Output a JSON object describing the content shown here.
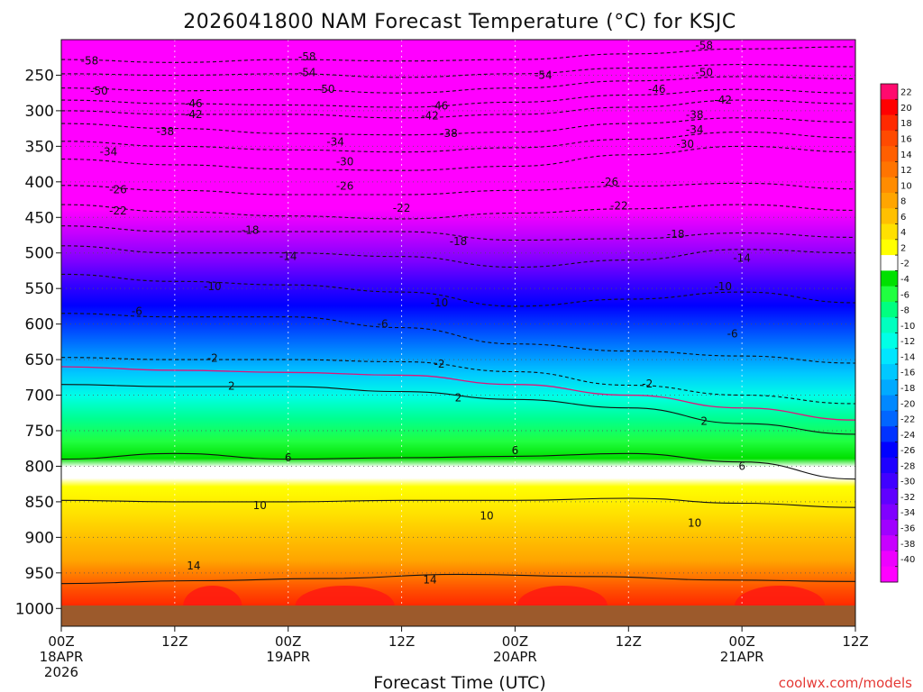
{
  "chart_data": {
    "type": "heatmap",
    "title": "2026041800 NAM Forecast Temperature (°C) for KSJC",
    "xlabel": "Forecast Time (UTC)",
    "ylabel": "",
    "credit": "coolwx.com/models",
    "y_ticks": [
      "250",
      "300",
      "350",
      "400",
      "450",
      "500",
      "550",
      "600",
      "650",
      "700",
      "750",
      "800",
      "850",
      "900",
      "950",
      "1000"
    ],
    "y_values": [
      250,
      300,
      350,
      400,
      450,
      500,
      550,
      600,
      650,
      700,
      750,
      800,
      850,
      900,
      950,
      1000
    ],
    "y_range_hPa": [
      200,
      1025
    ],
    "x_range_hours": [
      0,
      84
    ],
    "x_ticks": [
      {
        "hour": 0,
        "lines": [
          "00Z",
          "18APR",
          "2026"
        ]
      },
      {
        "hour": 12,
        "lines": [
          "12Z"
        ]
      },
      {
        "hour": 24,
        "lines": [
          "00Z",
          "19APR"
        ]
      },
      {
        "hour": 36,
        "lines": [
          "12Z"
        ]
      },
      {
        "hour": 48,
        "lines": [
          "00Z",
          "20APR"
        ]
      },
      {
        "hour": 60,
        "lines": [
          "12Z"
        ]
      },
      {
        "hour": 72,
        "lines": [
          "00Z",
          "21APR"
        ]
      },
      {
        "hour": 84,
        "lines": [
          "12Z"
        ]
      }
    ],
    "colorbar_labels": [
      "22",
      "20",
      "18",
      "16",
      "14",
      "12",
      "10",
      "8",
      "6",
      "4",
      "2",
      "-2",
      "-4",
      "-6",
      "-8",
      "-10",
      "-12",
      "-14",
      "-16",
      "-18",
      "-20",
      "-22",
      "-24",
      "-26",
      "-28",
      "-30",
      "-32",
      "-34",
      "-36",
      "-38",
      "-40"
    ],
    "colorbar_colors": [
      "#ff0a6e",
      "#ff0000",
      "#ff2a00",
      "#ff4a00",
      "#ff5f00",
      "#ff7400",
      "#ff8c00",
      "#ffa500",
      "#ffc000",
      "#ffe000",
      "#ffff00",
      "#ffffff",
      "#00e000",
      "#20ff40",
      "#00ff80",
      "#00ffbf",
      "#00ffe6",
      "#00e6ff",
      "#00c8ff",
      "#00aaff",
      "#0088ff",
      "#0066ff",
      "#0033ff",
      "#0000ff",
      "#1e00ff",
      "#4000ff",
      "#6000ff",
      "#8000ff",
      "#a000ff",
      "#c800ff",
      "#ee00ff",
      "#ff00ff"
    ],
    "isotherms": [
      {
        "temp": 14,
        "hPa": [
          965,
          961,
          958,
          952,
          955,
          960,
          962
        ]
      },
      {
        "temp": 10,
        "hPa": [
          848,
          850,
          850,
          848,
          848,
          845,
          852,
          858
        ]
      },
      {
        "temp": 6,
        "hPa": [
          790,
          782,
          790,
          788,
          786,
          782,
          794,
          818
        ]
      },
      {
        "temp": 2,
        "hPa": [
          685,
          688,
          688,
          695,
          706,
          718,
          740,
          755
        ]
      },
      {
        "temp": -2,
        "hPa": [
          647,
          650,
          650,
          653,
          667,
          686,
          700,
          712
        ]
      },
      {
        "temp": -6,
        "hPa": [
          585,
          590,
          590,
          605,
          628,
          638,
          645,
          655
        ]
      },
      {
        "temp": -10,
        "hPa": [
          530,
          540,
          545,
          555,
          575,
          565,
          555,
          570
        ]
      },
      {
        "temp": -14,
        "hPa": [
          490,
          500,
          500,
          505,
          520,
          510,
          495,
          500
        ]
      },
      {
        "temp": -18,
        "hPa": [
          462,
          470,
          470,
          470,
          482,
          480,
          472,
          478
        ]
      },
      {
        "temp": -22,
        "hPa": [
          432,
          442,
          448,
          452,
          444,
          438,
          432,
          440
        ]
      },
      {
        "temp": -26,
        "hPa": [
          405,
          412,
          418,
          418,
          412,
          406,
          402,
          410
        ]
      },
      {
        "temp": -30,
        "hPa": [
          368,
          376,
          382,
          384,
          378,
          362,
          350,
          358
        ]
      },
      {
        "temp": -34,
        "hPa": [
          343,
          350,
          355,
          358,
          352,
          340,
          330,
          338
        ]
      },
      {
        "temp": -38,
        "hPa": [
          318,
          325,
          332,
          334,
          330,
          318,
          310,
          316
        ]
      },
      {
        "temp": -42,
        "hPa": [
          300,
          305,
          305,
          310,
          305,
          295,
          285,
          290
        ]
      },
      {
        "temp": -46,
        "hPa": [
          285,
          290,
          292,
          295,
          288,
          278,
          270,
          275
        ]
      },
      {
        "temp": -50,
        "hPa": [
          268,
          272,
          270,
          275,
          268,
          258,
          252,
          255
        ]
      },
      {
        "temp": -54,
        "hPa": [
          248,
          250,
          248,
          253,
          248,
          240,
          235,
          238
        ]
      },
      {
        "temp": -58,
        "hPa": [
          228,
          232,
          228,
          230,
          228,
          220,
          213,
          210
        ]
      }
    ],
    "contour_labels": [
      {
        "text": "-58",
        "hour": 3,
        "hPa": 230
      },
      {
        "text": "-58",
        "hour": 26,
        "hPa": 224
      },
      {
        "text": "-58",
        "hour": 68,
        "hPa": 208
      },
      {
        "text": "-54",
        "hour": 26,
        "hPa": 246
      },
      {
        "text": "-54",
        "hour": 51,
        "hPa": 250
      },
      {
        "text": "-50",
        "hour": 68,
        "hPa": 246
      },
      {
        "text": "-50",
        "hour": 4,
        "hPa": 272
      },
      {
        "text": "-50",
        "hour": 28,
        "hPa": 270
      },
      {
        "text": "-46",
        "hour": 63,
        "hPa": 270
      },
      {
        "text": "-46",
        "hour": 14,
        "hPa": 290
      },
      {
        "text": "-46",
        "hour": 40,
        "hPa": 293
      },
      {
        "text": "-42",
        "hour": 70,
        "hPa": 285
      },
      {
        "text": "-42",
        "hour": 14,
        "hPa": 305
      },
      {
        "text": "-42",
        "hour": 39,
        "hPa": 307
      },
      {
        "text": "-38",
        "hour": 67,
        "hPa": 306
      },
      {
        "text": "-38",
        "hour": 11,
        "hPa": 329
      },
      {
        "text": "-38",
        "hour": 41,
        "hPa": 332
      },
      {
        "text": "-34",
        "hour": 67,
        "hPa": 327
      },
      {
        "text": "-34",
        "hour": 29,
        "hPa": 344
      },
      {
        "text": "-34",
        "hour": 5,
        "hPa": 358
      },
      {
        "text": "-30",
        "hour": 66,
        "hPa": 347
      },
      {
        "text": "-30",
        "hour": 30,
        "hPa": 372
      },
      {
        "text": "-26",
        "hour": 6,
        "hPa": 411
      },
      {
        "text": "-26",
        "hour": 30,
        "hPa": 406
      },
      {
        "text": "-26",
        "hour": 58,
        "hPa": 400
      },
      {
        "text": "-22",
        "hour": 6,
        "hPa": 441
      },
      {
        "text": "-22",
        "hour": 36,
        "hPa": 437
      },
      {
        "text": "-22",
        "hour": 59,
        "hPa": 434
      },
      {
        "text": "-18",
        "hour": 20,
        "hPa": 468
      },
      {
        "text": "-18",
        "hour": 42,
        "hPa": 484
      },
      {
        "text": "-18",
        "hour": 65,
        "hPa": 474
      },
      {
        "text": "-14",
        "hour": 24,
        "hPa": 505
      },
      {
        "text": "-14",
        "hour": 72,
        "hPa": 507
      },
      {
        "text": "-10",
        "hour": 16,
        "hPa": 547
      },
      {
        "text": "-10",
        "hour": 40,
        "hPa": 570
      },
      {
        "text": "-10",
        "hour": 70,
        "hPa": 547
      },
      {
        "text": "-6",
        "hour": 8,
        "hPa": 582
      },
      {
        "text": "-6",
        "hour": 34,
        "hPa": 600
      },
      {
        "text": "-6",
        "hour": 71,
        "hPa": 614
      },
      {
        "text": "-2",
        "hour": 16,
        "hPa": 648
      },
      {
        "text": "-2",
        "hour": 40,
        "hPa": 656
      },
      {
        "text": "-2",
        "hour": 62,
        "hPa": 684
      },
      {
        "text": "2",
        "hour": 18,
        "hPa": 687
      },
      {
        "text": "2",
        "hour": 42,
        "hPa": 704
      },
      {
        "text": "2",
        "hour": 68,
        "hPa": 737
      },
      {
        "text": "6",
        "hour": 24,
        "hPa": 788
      },
      {
        "text": "6",
        "hour": 48,
        "hPa": 778
      },
      {
        "text": "6",
        "hour": 72,
        "hPa": 800
      },
      {
        "text": "10",
        "hour": 21,
        "hPa": 855
      },
      {
        "text": "10",
        "hour": 45,
        "hPa": 870
      },
      {
        "text": "10",
        "hour": 67,
        "hPa": 880
      },
      {
        "text": "14",
        "hour": 14,
        "hPa": 940
      },
      {
        "text": "14",
        "hour": 39,
        "hPa": 960
      }
    ]
  }
}
